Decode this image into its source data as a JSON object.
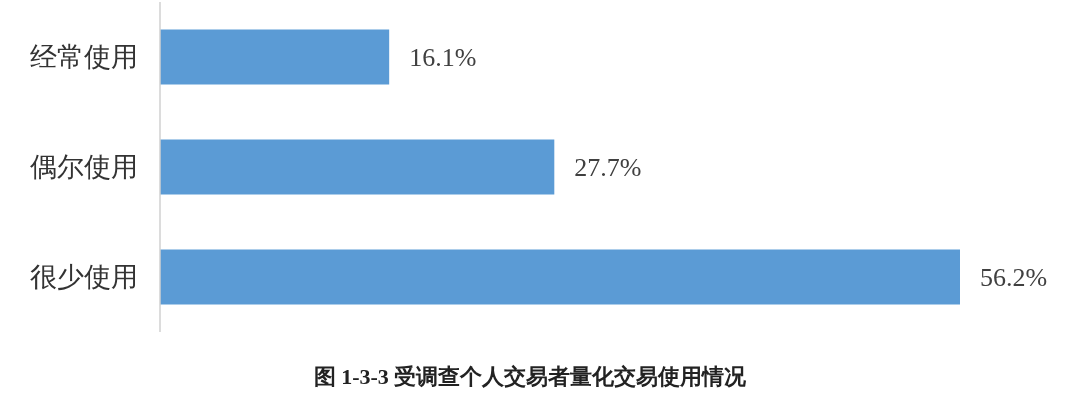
{
  "chart_data": {
    "type": "bar",
    "orientation": "horizontal",
    "title": "图 1-3-3 受调查个人交易者量化交易使用情况",
    "categories": [
      "经常使用",
      "偶尔使用",
      "很少使用"
    ],
    "values": [
      16.1,
      27.7,
      56.2
    ],
    "value_labels": [
      "16.1%",
      "27.7%",
      "56.2%"
    ],
    "color": "#5b9bd5"
  }
}
